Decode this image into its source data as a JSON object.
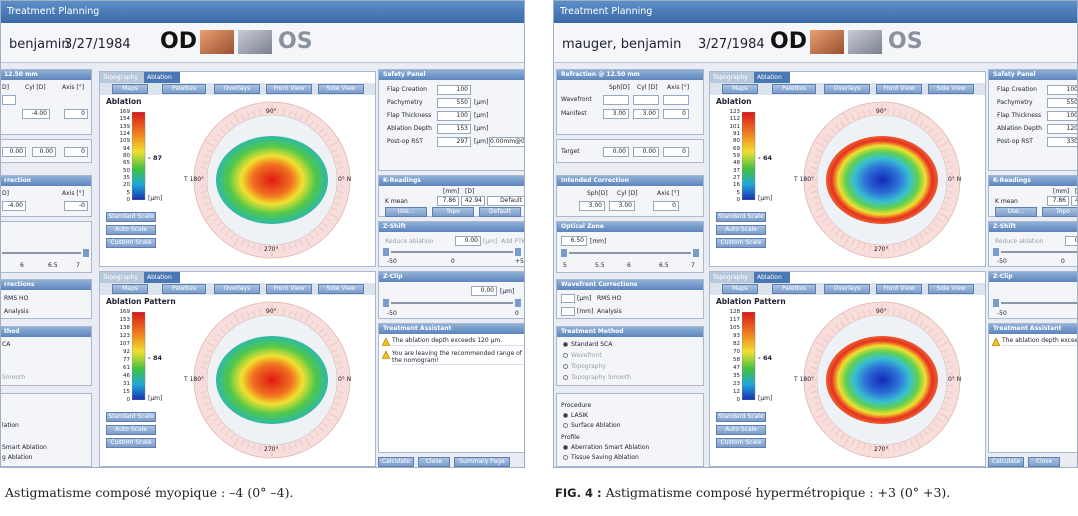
{
  "panels": [
    {
      "title": "Treatment Planning",
      "patient": {
        "name": "benjamin",
        "dob": "3/27/1984",
        "od": "OD",
        "os": "OS"
      },
      "left_column": {
        "refraction_title": "12.50 mm",
        "headers": [
          "D]",
          "Cyl [D]",
          "Axis [°]"
        ],
        "manifest": [
          "-4.00",
          "0"
        ],
        "target": [
          "0.00",
          "0.00",
          "0"
        ],
        "intended_title": "rrection",
        "intended_headers": [
          "D]",
          "Axis [°]"
        ],
        "intended_values": [
          "-4.00",
          "-0"
        ],
        "zone_scale": [
          "6",
          "6.5",
          "7"
        ],
        "wavefront_title": "rrections",
        "wavefront_rows": [
          "RMS HO",
          "Analysis"
        ],
        "method_title": "thod",
        "method_options": [
          "CA",
          "Smooth"
        ],
        "procedure": [
          "lation"
        ],
        "profile": [
          "Smart Ablation",
          "g Ablation"
        ]
      },
      "maps": [
        {
          "tabs": [
            "Topography",
            "Ablation"
          ],
          "toolbar": [
            "Maps",
            "Palettes",
            "Overlays",
            "Front View",
            "Side View"
          ],
          "heading": "Ablation",
          "scale": [
            "169",
            "154",
            "139",
            "124",
            "109",
            "94",
            "80",
            "65",
            "50",
            "35",
            "20",
            "5",
            "0"
          ],
          "marker": "- 87",
          "unit": "[µm]",
          "scale_buttons": [
            "Standard Scale",
            "Auto Scale",
            "Custom Scale"
          ],
          "compass": {
            "top": "90°",
            "bottom": "270°",
            "left": "T 180°",
            "right": "0°  N"
          }
        },
        {
          "tabs": [
            "Topography",
            "Ablation"
          ],
          "toolbar": [
            "Maps",
            "Palettes",
            "Overlays",
            "Front View",
            "Side View"
          ],
          "heading": "Ablation Pattern",
          "scale": [
            "169",
            "153",
            "138",
            "123",
            "107",
            "92",
            "77",
            "61",
            "46",
            "31",
            "15",
            "0"
          ],
          "marker": "- 84",
          "unit": "[µm]",
          "scale_buttons": [
            "Standard Scale",
            "Auto Scale",
            "Custom Scale"
          ],
          "compass": {
            "top": "90°",
            "bottom": "270°",
            "left": "T 180°",
            "right": "0°  N"
          }
        }
      ],
      "safety": {
        "title": "Safety Panel",
        "rows": [
          {
            "label": "Flap Creation",
            "value": "100"
          },
          {
            "label": "Pachymetry",
            "value": "550",
            "unit": "[µm]"
          },
          {
            "label": "Flap Thickness",
            "value": "100",
            "unit": "[µm]"
          },
          {
            "label": "Ablation Depth",
            "value": "153",
            "unit": "[µm]"
          },
          {
            "label": "Post-op RST",
            "value": "297",
            "unit": "[µm]",
            "extra": "0.00mm@0°"
          }
        ]
      },
      "k_readings": {
        "title": "K-Readings",
        "headers": [
          "[mm]",
          "[D]"
        ],
        "label": "K mean",
        "mm": "7.86",
        "d": "42.94",
        "option": "Default",
        "buttons": [
          "Use...",
          "Topo",
          "Default"
        ]
      },
      "z_shift": {
        "title": "Z-Shift",
        "label": "Reduce ablation",
        "value": "0.00",
        "unit": "[µm]",
        "extra": "Add PTK",
        "scale": [
          "-50",
          "0",
          "+50"
        ]
      },
      "z_clip": {
        "title": "Z-Clip",
        "value": "0.00",
        "unit": "[µm]",
        "scale": [
          "-50",
          "0"
        ]
      },
      "assistant": {
        "title": "Treatment Assistant",
        "messages": [
          "The ablation depth exceeds 120 µm.",
          "You are leaving the recommended range of the nomogram!"
        ]
      },
      "buttons": [
        "Calculate",
        "Close",
        "Summary Page"
      ]
    },
    {
      "title": "Treatment Planning",
      "patient": {
        "name": "mauger, benjamin",
        "dob": "3/27/1984",
        "od": "OD",
        "os": "OS"
      },
      "left_column": {
        "refraction_title": "Refraction @ 12.50 mm",
        "headers": [
          "Sph[D]",
          "Cyl [D]",
          "Axis [°]"
        ],
        "wavefront_label": "Wavefront",
        "manifest_label": "Manifest",
        "manifest": [
          "3.00",
          "3.00",
          "0"
        ],
        "target_label": "Target",
        "target": [
          "0.00",
          "0.00",
          "0"
        ],
        "intended_title": "Intended Correction",
        "intended_headers": [
          "Sph[D]",
          "Cyl [D]",
          "Axis [°]"
        ],
        "intended_values": [
          "3.00",
          "3.00",
          "0"
        ],
        "zone_title": "Optical Zone",
        "zone_value": "6.50",
        "zone_unit": "[mm]",
        "zone_scale": [
          "5",
          "5.5",
          "6",
          "6.5",
          "7"
        ],
        "wavefront_title": "Wavefront Corrections",
        "wavefront_rows": [
          {
            "unit": "[µm]",
            "label": "RMS HO"
          },
          {
            "unit": "[mm]",
            "label": "Analysis"
          }
        ],
        "method_title": "Treatment Method",
        "method_options": [
          "Standard SCA",
          "Wavefront",
          "Topography",
          "Topography Smooth"
        ],
        "procedure_label": "Procedure",
        "procedure": [
          "LASIK",
          "Surface Ablation"
        ],
        "profile_label": "Profile",
        "profile": [
          "Aberration Smart Ablation",
          "Tissue Saving Ablation"
        ]
      },
      "maps": [
        {
          "tabs": [
            "Topography",
            "Ablation"
          ],
          "toolbar": [
            "Maps",
            "Palettes",
            "Overlays",
            "Front View",
            "Side View"
          ],
          "heading": "Ablation",
          "scale": [
            "123",
            "112",
            "101",
            "91",
            "80",
            "69",
            "59",
            "48",
            "37",
            "27",
            "16",
            "5",
            "0"
          ],
          "marker": "- 64",
          "unit": "[µm]",
          "scale_buttons": [
            "Standard Scale",
            "Auto Scale",
            "Custom Scale"
          ],
          "compass": {
            "top": "90°",
            "bottom": "270°",
            "left": "T 180°",
            "right": "0°  N"
          }
        },
        {
          "tabs": [
            "Topography",
            "Ablation"
          ],
          "toolbar": [
            "Maps",
            "Palettes",
            "Overlays",
            "Front View",
            "Side View"
          ],
          "heading": "Ablation Pattern",
          "scale": [
            "128",
            "117",
            "105",
            "93",
            "82",
            "70",
            "58",
            "47",
            "35",
            "23",
            "12",
            "0"
          ],
          "marker": "- 64",
          "unit": "[µm]",
          "scale_buttons": [
            "Standard Scale",
            "Auto Scale",
            "Custom Scale"
          ],
          "compass": {
            "top": "90°",
            "bottom": "270°",
            "left": "T 180°",
            "right": "0°  N"
          }
        }
      ],
      "safety": {
        "title": "Safety Panel",
        "rows": [
          {
            "label": "Flap Creation",
            "value": "100"
          },
          {
            "label": "Pachymetry",
            "value": "550",
            "unit": "[µm]"
          },
          {
            "label": "Flap Thickness",
            "value": "100",
            "unit": "[µm]"
          },
          {
            "label": "Ablation Depth",
            "value": "120",
            "unit": "[µm]"
          },
          {
            "label": "Post-op RST",
            "value": "330",
            "unit": "[µm]"
          }
        ]
      },
      "k_readings": {
        "title": "K-Readings",
        "headers": [
          "[mm]",
          "[D]"
        ],
        "label": "K mean",
        "mm": "7.86",
        "d": "42.94",
        "buttons": [
          "Use...",
          "Topo"
        ]
      },
      "z_shift": {
        "title": "Z-Shift",
        "label": "Reduce ablation",
        "value": "0.00",
        "unit": "[µm]",
        "scale": [
          "-50",
          "0"
        ]
      },
      "z_clip": {
        "title": "Z-Clip",
        "value": "0.00",
        "unit": "[µm]",
        "scale": [
          "-50"
        ]
      },
      "assistant": {
        "title": "Treatment Assistant",
        "messages": [
          "The ablation depth exceeds 120"
        ]
      },
      "buttons": [
        "Calculate",
        "Close"
      ]
    }
  ],
  "captions": [
    {
      "text": "Astigmatisme composé myopique : –4 (0° –4)."
    },
    {
      "label": "FIG. 4 :",
      "text": "Astigmatisme composé hypermétropique : +3 (0° +3)."
    }
  ]
}
